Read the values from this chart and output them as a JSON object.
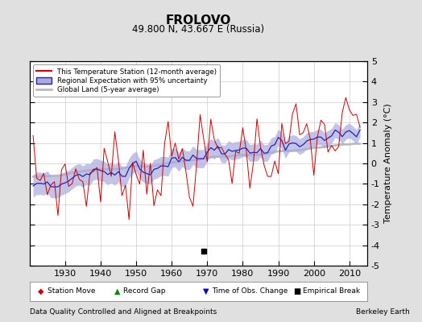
{
  "title": "FROLOVO",
  "subtitle": "49.800 N, 43.667 E (Russia)",
  "ylabel": "Temperature Anomaly (°C)",
  "xlabel_left": "Data Quality Controlled and Aligned at Breakpoints",
  "xlabel_right": "Berkeley Earth",
  "ylim": [
    -5,
    5
  ],
  "xlim": [
    1920,
    2015
  ],
  "yticks": [
    -5,
    -4,
    -3,
    -2,
    -1,
    0,
    1,
    2,
    3,
    4,
    5
  ],
  "xticks": [
    1930,
    1940,
    1950,
    1960,
    1970,
    1980,
    1990,
    2000,
    2010
  ],
  "background_color": "#e0e0e0",
  "plot_bg_color": "#ffffff",
  "station_line_color": "#cc0000",
  "regional_line_color": "#2222bb",
  "regional_fill_color": "#aaaadd",
  "global_line_color": "#bbbbbb",
  "legend_items": [
    "This Temperature Station (12-month average)",
    "Regional Expectation with 95% uncertainty",
    "Global Land (5-year average)"
  ],
  "marker_legend": [
    {
      "label": "Station Move",
      "color": "#cc0000",
      "marker": "D"
    },
    {
      "label": "Record Gap",
      "color": "#008800",
      "marker": "^"
    },
    {
      "label": "Time of Obs. Change",
      "color": "#0000cc",
      "marker": "v"
    },
    {
      "label": "Empirical Break",
      "color": "#000000",
      "marker": "s"
    }
  ],
  "empirical_break_year": 1969,
  "empirical_break_anomaly": -4.3
}
